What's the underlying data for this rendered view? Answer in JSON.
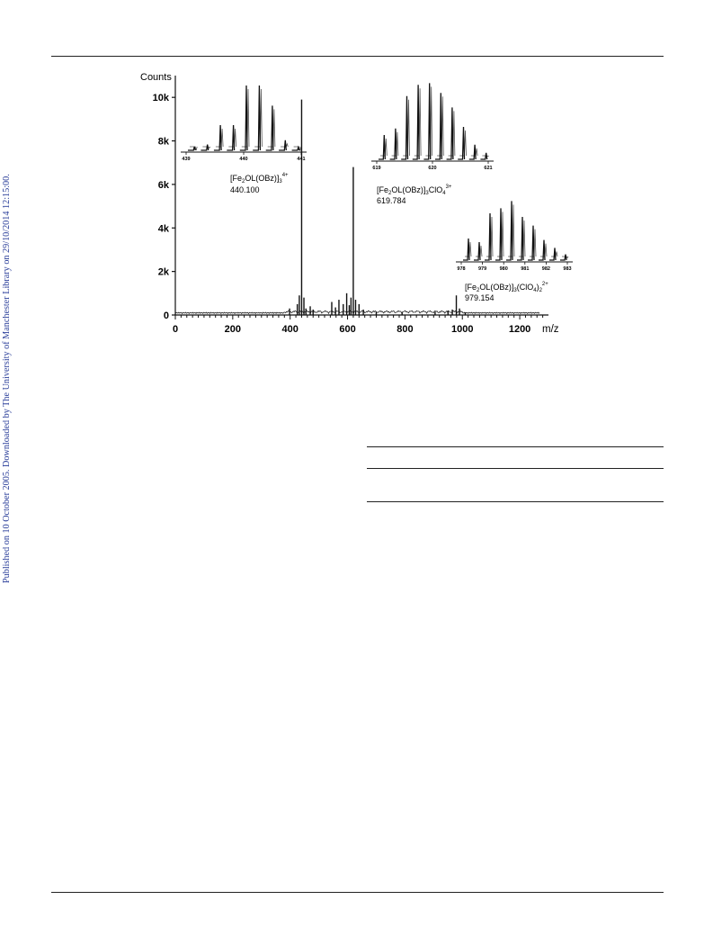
{
  "sidebar": {
    "text": "Published on 10 October 2005. Downloaded by The University of Manchester Library on 29/10/2014 12:15:00."
  },
  "chart_data": {
    "type": "line",
    "ylabel": "Counts",
    "xlabel": "m/z",
    "xlim": [
      0,
      1300
    ],
    "ylim": [
      0,
      11000
    ],
    "xticks": [
      "0",
      "200",
      "400",
      "600",
      "800",
      "1000",
      "1200"
    ],
    "yticks": [
      "0",
      "2k",
      "4k",
      "6k",
      "8k",
      "10k"
    ],
    "peaks": [
      {
        "x": 398,
        "y": 300
      },
      {
        "x": 425,
        "y": 500
      },
      {
        "x": 432,
        "y": 900
      },
      {
        "x": 440,
        "y": 9900
      },
      {
        "x": 448,
        "y": 800
      },
      {
        "x": 455,
        "y": 300
      },
      {
        "x": 470,
        "y": 400
      },
      {
        "x": 480,
        "y": 250
      },
      {
        "x": 545,
        "y": 600
      },
      {
        "x": 558,
        "y": 350
      },
      {
        "x": 570,
        "y": 700
      },
      {
        "x": 585,
        "y": 500
      },
      {
        "x": 597,
        "y": 1000
      },
      {
        "x": 606,
        "y": 450
      },
      {
        "x": 612,
        "y": 800
      },
      {
        "x": 620,
        "y": 6800
      },
      {
        "x": 628,
        "y": 700
      },
      {
        "x": 640,
        "y": 500
      },
      {
        "x": 655,
        "y": 250
      },
      {
        "x": 700,
        "y": 150
      },
      {
        "x": 790,
        "y": 120
      },
      {
        "x": 905,
        "y": 150
      },
      {
        "x": 950,
        "y": 200
      },
      {
        "x": 965,
        "y": 250
      },
      {
        "x": 979,
        "y": 900
      },
      {
        "x": 990,
        "y": 300
      },
      {
        "x": 1010,
        "y": 120
      }
    ],
    "insets": [
      {
        "formula_main": "[Fe",
        "formula_parts": [
          "2",
          "OL(OBz)]",
          "3",
          "",
          "4+"
        ],
        "value": "440.100",
        "ticks": [
          "439",
          "440",
          "441"
        ],
        "peaks": [
          0.05,
          0.08,
          0.35,
          0.35,
          0.9,
          0.9,
          0.62,
          0.14,
          0.04
        ]
      },
      {
        "value": "619.784",
        "ticks": [
          "619",
          "620",
          "621"
        ],
        "peaks": [
          0.3,
          0.38,
          0.78,
          0.92,
          0.94,
          0.82,
          0.64,
          0.4,
          0.18,
          0.08
        ]
      },
      {
        "value": "979.154",
        "ticks": [
          "978",
          "979",
          "980",
          "981",
          "982",
          "983"
        ],
        "peaks": [
          0.3,
          0.25,
          0.65,
          0.72,
          0.82,
          0.6,
          0.48,
          0.28,
          0.17,
          0.08
        ]
      }
    ],
    "annotations": {
      "a1": {
        "pre": "[Fe",
        "s1": "2",
        "mid": "OL(OBz)]",
        "s2": "3",
        "sup": "4+",
        "post": "",
        "value": "440.100"
      },
      "a2": {
        "pre": "[Fe",
        "s1": "2",
        "mid": "OL(OBz)]",
        "s2": "3",
        "post": "ClO",
        "s3": "4",
        "sup": "3+",
        "value": "619.784"
      },
      "a3": {
        "pre": "[Fe",
        "s1": "2",
        "mid": "OL(OBz)]",
        "s2": "3",
        "post": "(ClO",
        "s3": "4",
        "post2": ")",
        "s4": "2",
        "sup": "2+",
        "value": "979.154"
      }
    }
  }
}
